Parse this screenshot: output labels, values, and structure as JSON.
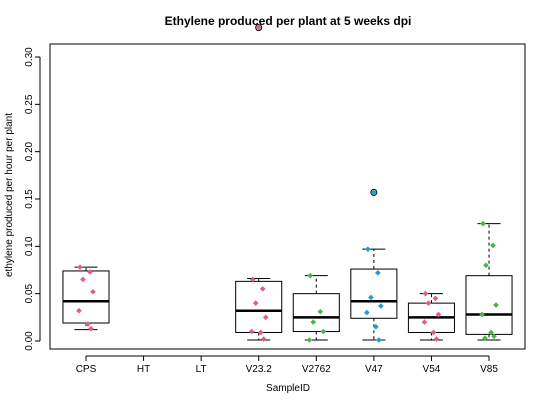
{
  "chart_data": {
    "type": "boxplot",
    "title": "Ethylene produced per plant at 5 weeks dpi",
    "xlabel": "SampleID",
    "ylabel": "ethylene produced per hour per plant",
    "ylim": [
      -0.005,
      0.34
    ],
    "yticks": [
      "0.00",
      "0.05",
      "0.10",
      "0.15",
      "0.20",
      "0.25",
      "0.30"
    ],
    "categories": [
      "CPS",
      "HT",
      "LT",
      "V23.2",
      "V2762",
      "V47",
      "V54",
      "V85"
    ],
    "boxes": [
      {
        "category": "CPS",
        "whisker_low": 0.012,
        "q1": 0.019,
        "median": 0.042,
        "q3": 0.074,
        "whisker_high": 0.078,
        "outliers": [],
        "points": [
          0.078,
          0.073,
          0.065,
          0.052,
          0.032,
          0.018,
          0.013
        ],
        "point_color": "#E0607E"
      },
      {
        "category": "HT",
        "points": []
      },
      {
        "category": "LT",
        "points": []
      },
      {
        "category": "V23.2",
        "whisker_low": 0.001,
        "q1": 0.009,
        "median": 0.032,
        "q3": 0.063,
        "whisker_high": 0.066,
        "outliers": [
          0.331
        ],
        "points": [
          0.065,
          0.055,
          0.04,
          0.025,
          0.01,
          0.009,
          0.002,
          0.331
        ],
        "point_color": "#E0607E"
      },
      {
        "category": "V2762",
        "whisker_low": 0.001,
        "q1": 0.01,
        "median": 0.025,
        "q3": 0.05,
        "whisker_high": 0.069,
        "outliers": [],
        "points": [
          0.069,
          0.031,
          0.02,
          0.01,
          0.001
        ],
        "point_color": "#4CB44C"
      },
      {
        "category": "V47",
        "whisker_low": 0.001,
        "q1": 0.024,
        "median": 0.042,
        "q3": 0.076,
        "whisker_high": 0.097,
        "outliers": [
          0.157
        ],
        "points": [
          0.097,
          0.072,
          0.046,
          0.037,
          0.03,
          0.015,
          0.001,
          0.157
        ],
        "point_color": "#1F9ED0"
      },
      {
        "category": "V54",
        "whisker_low": 0.001,
        "q1": 0.009,
        "median": 0.025,
        "q3": 0.04,
        "whisker_high": 0.05,
        "outliers": [],
        "points": [
          0.05,
          0.045,
          0.04,
          0.028,
          0.02,
          0.009,
          0.002
        ],
        "point_color": "#E0607E"
      },
      {
        "category": "V85",
        "whisker_low": 0.001,
        "q1": 0.007,
        "median": 0.028,
        "q3": 0.069,
        "whisker_high": 0.124,
        "outliers": [],
        "points": [
          0.124,
          0.101,
          0.08,
          0.038,
          0.028,
          0.009,
          0.005,
          0.003
        ],
        "point_color": "#4CB44C"
      }
    ],
    "colors": {
      "pink": "#E0607E",
      "green": "#4CB44C",
      "blue": "#1F9ED0",
      "box": "#000000"
    }
  }
}
